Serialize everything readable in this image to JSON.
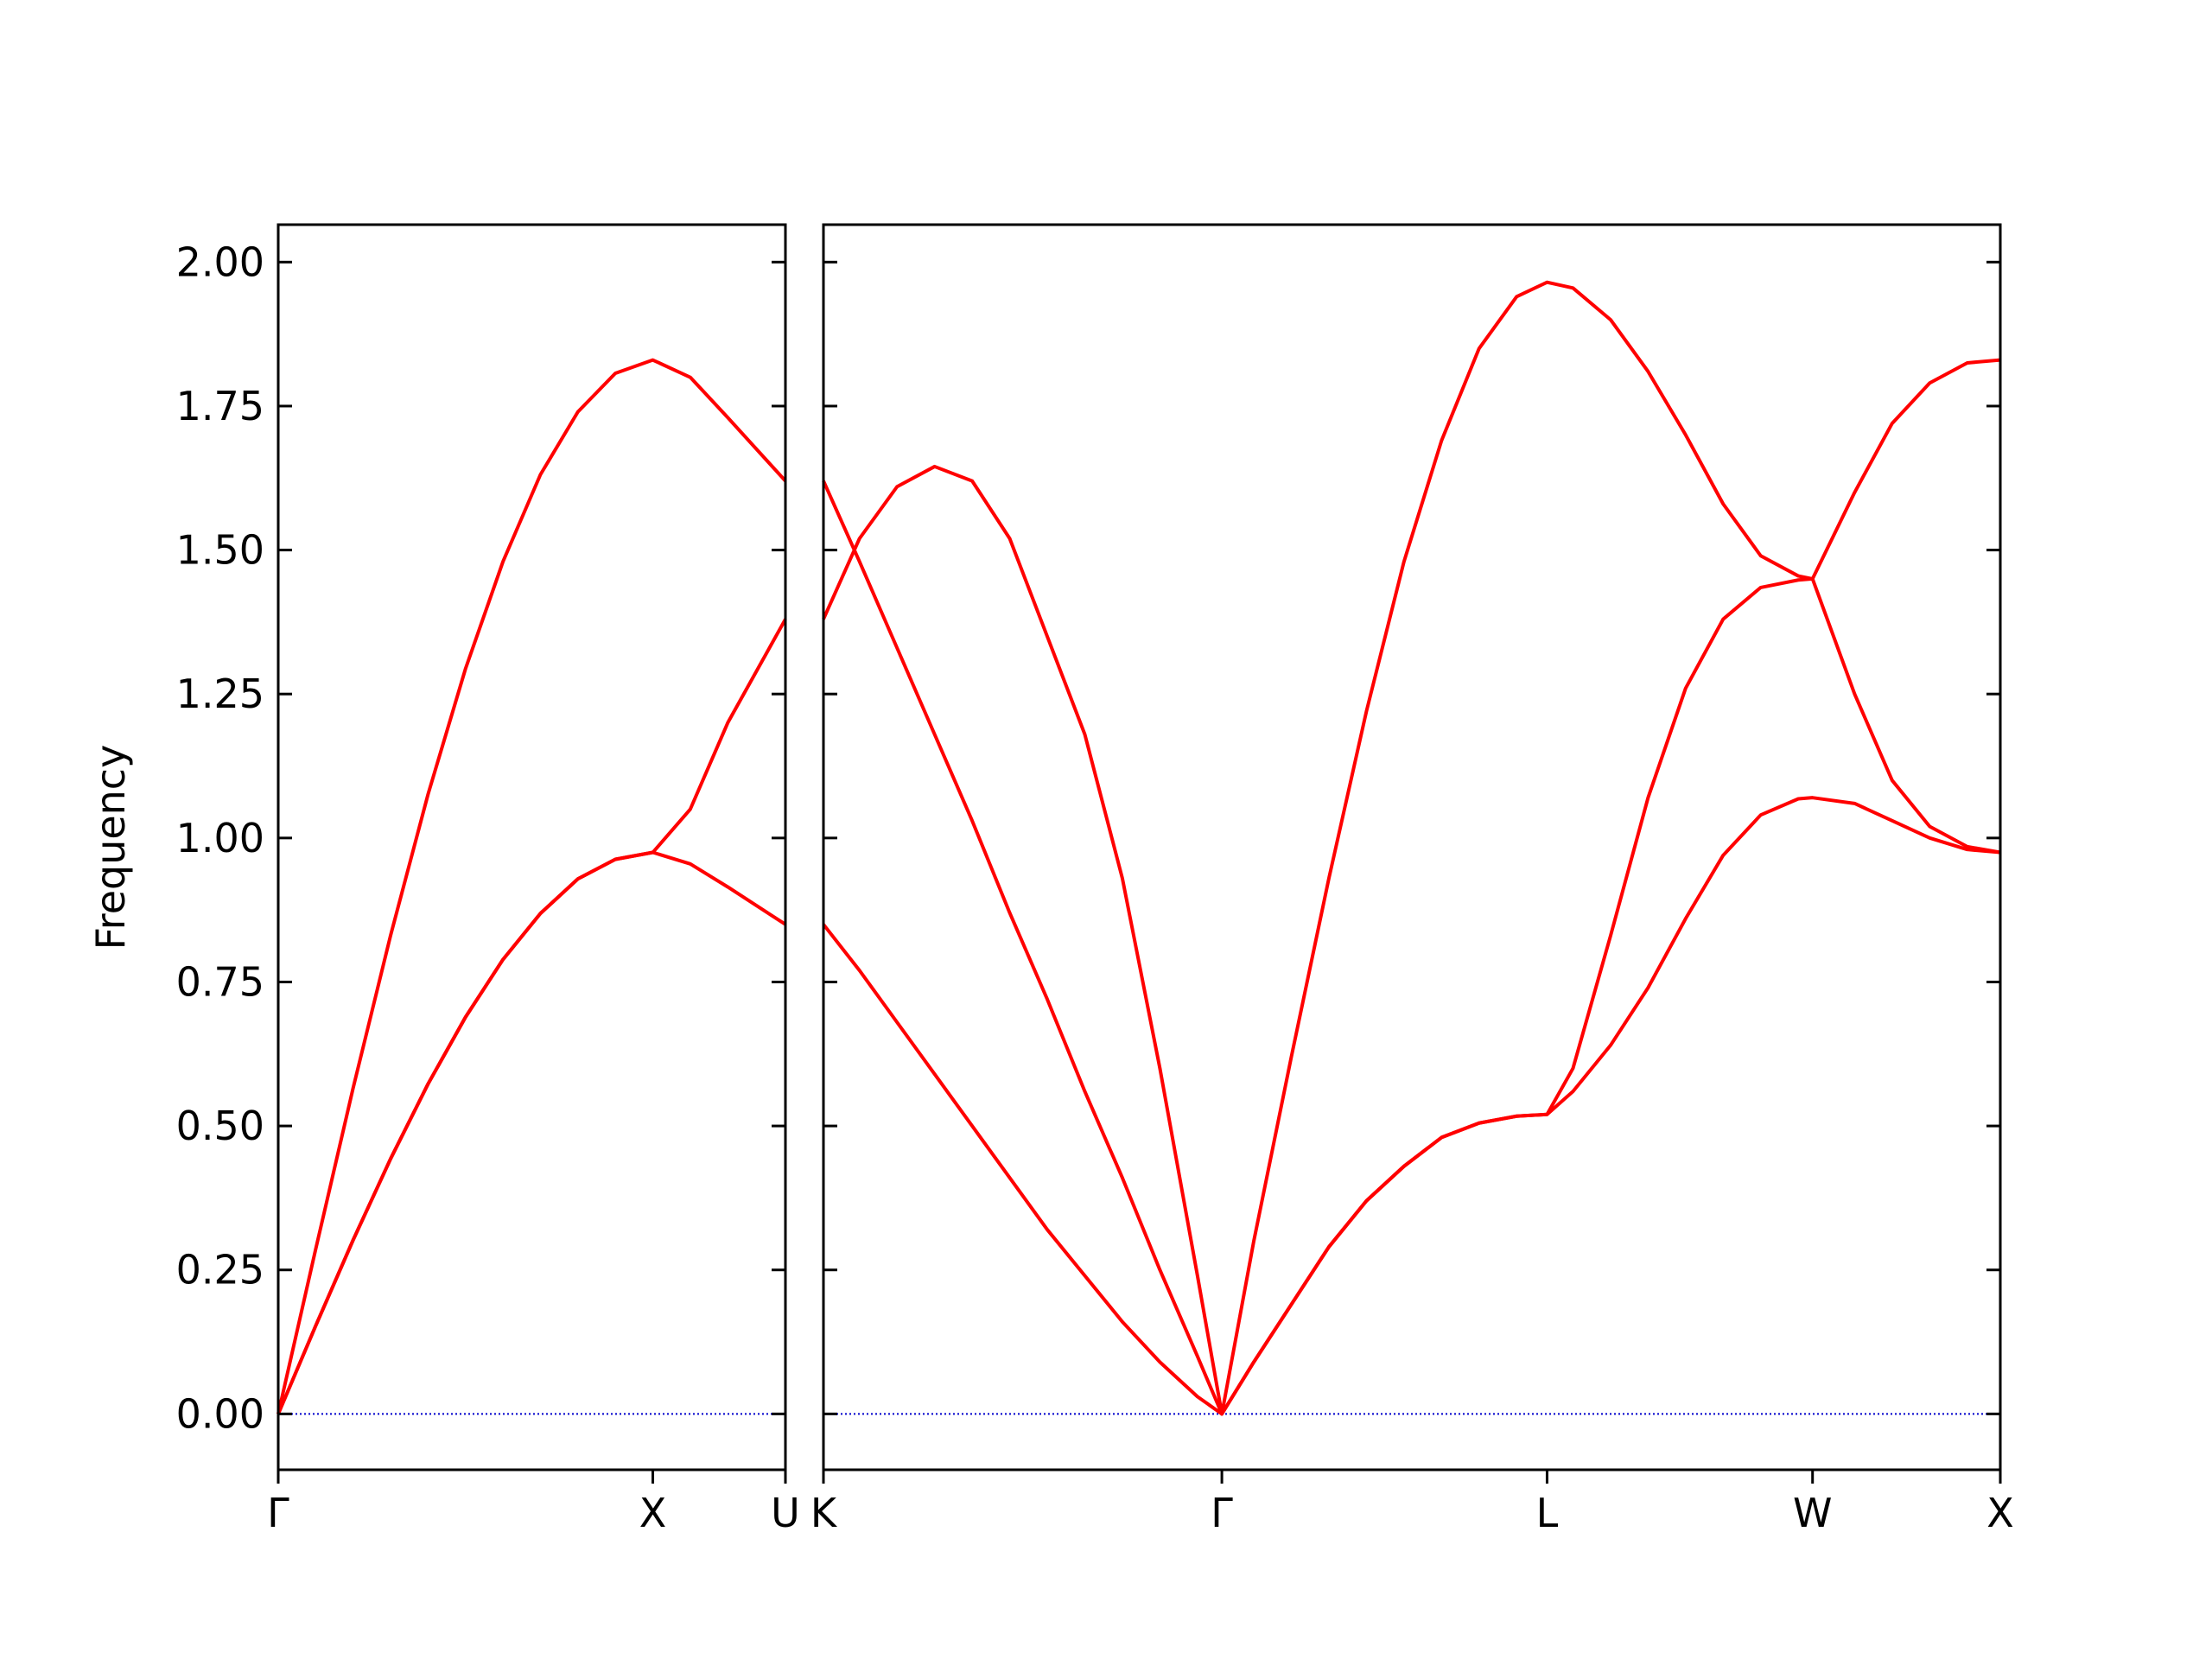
{
  "chart_data": [
    {
      "type": "line",
      "ylabel": "Frequency",
      "x": [
        0,
        0.1,
        0.2,
        0.3,
        0.4,
        0.5,
        0.6,
        0.7,
        0.8,
        0.9,
        1.0,
        1.1,
        1.2,
        1.354
      ],
      "series": [
        {
          "color": "#ff0000",
          "values": [
            0,
            0.286,
            0.566,
            0.831,
            1.076,
            1.294,
            1.48,
            1.631,
            1.74,
            1.807,
            1.83,
            1.8,
            1.73,
            1.62
          ]
        },
        {
          "color": "#ff0000",
          "values": [
            0,
            0.153,
            0.302,
            0.443,
            0.573,
            0.689,
            0.789,
            0.869,
            0.929,
            0.963,
            0.975,
            1.05,
            1.2,
            1.38
          ]
        },
        {
          "color": "#ff0000",
          "values": [
            0,
            0.153,
            0.302,
            0.443,
            0.573,
            0.689,
            0.789,
            0.869,
            0.929,
            0.963,
            0.975,
            0.955,
            0.915,
            0.85
          ]
        }
      ],
      "xlim": [
        0,
        1.354
      ],
      "xticks": [
        {
          "value": 0,
          "label": "Γ"
        },
        {
          "value": 1.0,
          "label": "X"
        },
        {
          "value": 1.354,
          "label": "U"
        }
      ],
      "ylim": [
        -0.097,
        2.065
      ],
      "yticks": [
        {
          "value": 0,
          "label": "0.00"
        },
        {
          "value": 0.25,
          "label": "0.25"
        },
        {
          "value": 0.5,
          "label": "0.50"
        },
        {
          "value": 0.75,
          "label": "0.75"
        },
        {
          "value": 1.0,
          "label": "1.00"
        },
        {
          "value": 1.25,
          "label": "1.25"
        },
        {
          "value": 1.5,
          "label": "1.50"
        },
        {
          "value": 1.75,
          "label": "1.75"
        },
        {
          "value": 2.0,
          "label": "2.00"
        }
      ],
      "hline": {
        "value": 0,
        "color": "#0000cc"
      }
    },
    {
      "type": "line",
      "x": [
        1.354,
        1.45,
        1.55,
        1.65,
        1.75,
        1.85,
        1.95,
        2.05,
        2.15,
        2.25,
        2.35,
        2.415,
        2.5,
        2.6,
        2.7,
        2.8,
        2.9,
        3.0,
        3.1,
        3.2,
        3.281,
        3.35,
        3.45,
        3.55,
        3.65,
        3.75,
        3.85,
        3.95,
        3.988,
        4.1,
        4.2,
        4.3,
        4.4,
        4.488
      ],
      "series": [
        {
          "color": "#ff0000",
          "values": [
            1.38,
            1.52,
            1.61,
            1.645,
            1.62,
            1.52,
            1.35,
            1.18,
            0.93,
            0.6,
            0.24,
            0,
            0.3,
            0.62,
            0.93,
            1.22,
            1.48,
            1.69,
            1.85,
            1.94,
            1.965,
            1.955,
            1.9,
            1.81,
            1.7,
            1.58,
            1.49,
            1.455,
            1.45,
            1.6,
            1.72,
            1.79,
            1.825,
            1.83
          ]
        },
        {
          "color": "#ff0000",
          "values": [
            1.62,
            1.48,
            1.33,
            1.18,
            1.03,
            0.87,
            0.72,
            0.56,
            0.41,
            0.25,
            0.1,
            0,
            0.09,
            0.19,
            0.29,
            0.37,
            0.43,
            0.48,
            0.505,
            0.517,
            0.52,
            0.6,
            0.83,
            1.07,
            1.26,
            1.38,
            1.435,
            1.448,
            1.45,
            1.25,
            1.1,
            1.02,
            0.985,
            0.975
          ]
        },
        {
          "color": "#ff0000",
          "values": [
            0.85,
            0.77,
            0.68,
            0.59,
            0.5,
            0.41,
            0.32,
            0.24,
            0.16,
            0.09,
            0.03,
            0,
            0.09,
            0.19,
            0.29,
            0.37,
            0.43,
            0.48,
            0.505,
            0.517,
            0.52,
            0.56,
            0.64,
            0.74,
            0.86,
            0.97,
            1.04,
            1.068,
            1.07,
            1.06,
            1.03,
            1.0,
            0.98,
            0.975
          ]
        }
      ],
      "xlim": [
        1.354,
        4.488
      ],
      "xticks": [
        {
          "value": 1.354,
          "label": "K"
        },
        {
          "value": 2.415,
          "label": "Γ"
        },
        {
          "value": 3.281,
          "label": "L"
        },
        {
          "value": 3.988,
          "label": "W"
        },
        {
          "value": 4.488,
          "label": "X"
        }
      ],
      "ylim": [
        -0.097,
        2.065
      ],
      "yticks": [
        0,
        0.25,
        0.5,
        0.75,
        1.0,
        1.25,
        1.5,
        1.75,
        2.0
      ],
      "hline": {
        "value": 0,
        "color": "#0000cc"
      }
    }
  ]
}
